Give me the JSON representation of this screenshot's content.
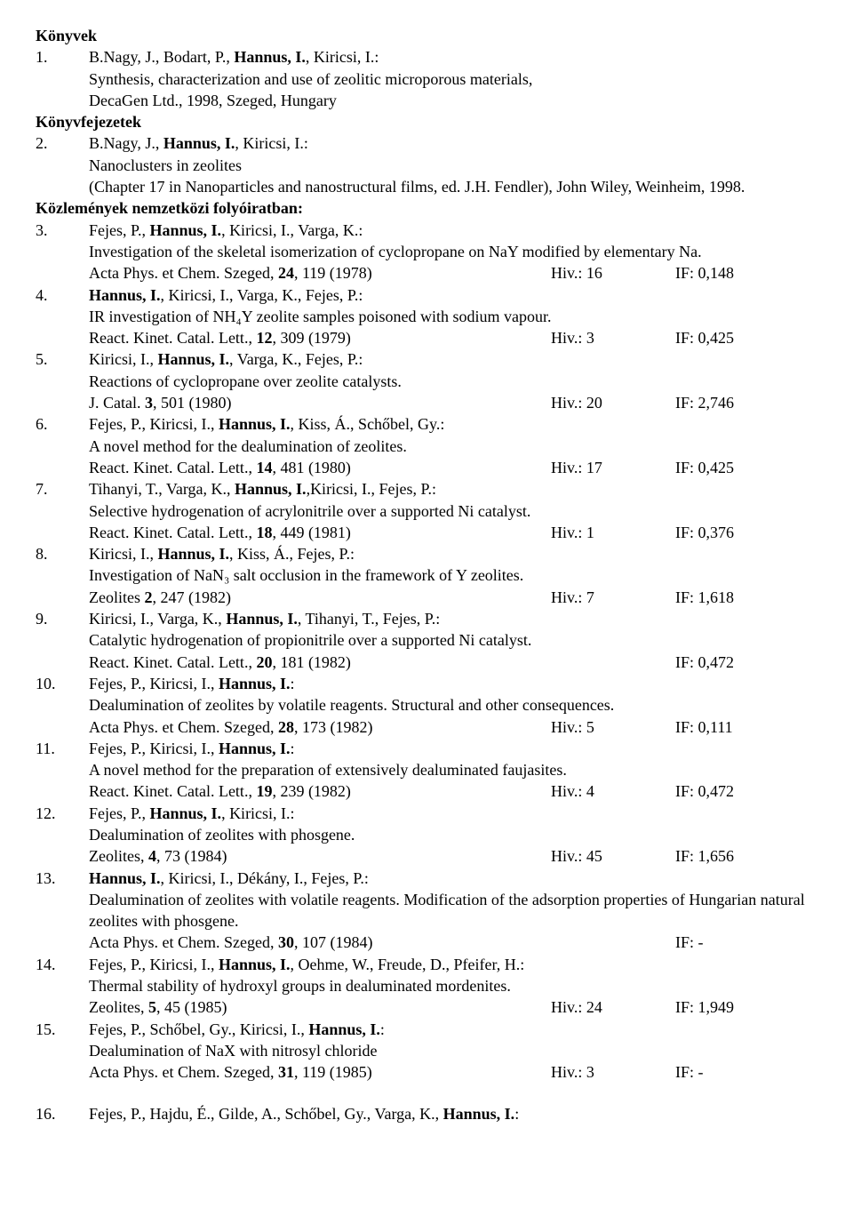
{
  "sections": {
    "books": "Könyvek",
    "chapters": "Könyvfejezetek",
    "journals": "Közlemények nemzetközi folyóiratban:"
  },
  "items": [
    {
      "num": "1.",
      "authors_html": "B.Nagy, J., Bodart, P., <b>Hannus, I.</b>, Kiricsi, I.:",
      "title": "Synthesis, characterization and use of zeolitic microporous materials,",
      "extra": "DecaGen Ltd., 1998, Szeged, Hungary"
    },
    {
      "num": "2.",
      "authors_html": "B.Nagy, J., <b>Hannus, I.</b>, Kiricsi, I.:",
      "title": "Nanoclusters in zeolites",
      "extra": "(Chapter 17 in Nanoparticles and nanostructural films, ed. J.H. Fendler), John Wiley, Weinheim, 1998."
    },
    {
      "num": "3.",
      "authors_html": "Fejes, P., <b>Hannus, I.</b>, Kiricsi, I., Varga, K.:",
      "title": "Investigation of the skeletal isomerization of cyclopropane on NaY modified by elementary Na.",
      "journal": "Acta Phys. et Chem. Szeged, <b>24</b>, 119 (1978)",
      "hiv": "Hiv.: 16",
      "if": "IF: 0,148"
    },
    {
      "num": "4.",
      "authors_html": "<b>Hannus, I.</b>, Kiricsi, I., Varga, K., Fejes, P.:",
      "title": "IR investigation of NH₄Y zeolite  samples  poisoned with  sodium vapour.",
      "journal": "React. Kinet. Catal. Lett., <b>12</b>, 309 (1979)",
      "hiv": "Hiv.: 3",
      "if": "IF: 0,425"
    },
    {
      "num": "5.",
      "authors_html": "Kiricsi, I., <b>Hannus, I.</b>, Varga, K., Fejes, P.:",
      "title": "Reactions of cyclopropane over zeolite catalysts.",
      "journal": "J. Catal. <b>3</b>, 501 (1980)",
      "hiv": "Hiv.: 20",
      "if": "IF: 2,746"
    },
    {
      "num": "6.",
      "authors_html": "Fejes, P., Kiricsi, I., <b>Hannus, I.</b>, Kiss, Á., Schőbel, Gy.:",
      "title": "A novel method for the dealumination of zeolites.",
      "journal": "React. Kinet. Catal. Lett., <b>14</b>, 481 (1980)",
      "hiv": "Hiv.: 17",
      "if": "IF: 0,425"
    },
    {
      "num": "7.",
      "authors_html": "Tihanyi, T., Varga, K., <b>Hannus, I.</b>,Kiricsi, I., Fejes, P.:",
      "title": "Selective hydrogenation of acrylonitrile over a supported  Ni catalyst.",
      "journal": "React. Kinet. Catal. Lett., <b>18</b>, 449 (1981)",
      "hiv": "Hiv.: 1",
      "if": "IF: 0,376"
    },
    {
      "num": "8.",
      "authors_html": "Kiricsi, I., <b>Hannus, I.</b>, Kiss, Á., Fejes, P.:",
      "title": "Investigation of NaN₃ salt occlusion in the framework of Y zeolites.",
      "journal": "Zeolites <b>2</b>, 247 (1982)",
      "hiv": "Hiv.: 7",
      "if": "IF: 1,618"
    },
    {
      "num": "9.",
      "authors_html": "Kiricsi, I., Varga, K., <b>Hannus, I.</b>, Tihanyi, T., Fejes, P.:",
      "title": "Catalytic hydrogenation of propionitrile over a supported Ni catalyst.",
      "journal": "React. Kinet. Catal. Lett., <b>20</b>, 181 (1982)",
      "hiv": "",
      "if": "IF: 0,472"
    },
    {
      "num": "10.",
      "authors_html": "Fejes, P., Kiricsi, I., <b>Hannus, I.</b>:",
      "title": "Dealumination  of  zeolites by volatile reagents. Structural and other consequences.",
      "journal": "Acta Phys. et Chem. Szeged, <b>28</b>, 173 (1982)",
      "hiv": "Hiv.: 5",
      "if": "IF: 0,111"
    },
    {
      "num": "11.",
      "authors_html": "Fejes, P., Kiricsi, I., <b>Hannus, I.</b>:",
      "title": "A novel method for the preparation of extensively dealuminated faujasites.",
      "journal": "React. Kinet. Catal. Lett., <b>19</b>, 239 (1982)",
      "hiv": "Hiv.: 4",
      "if": "IF: 0,472"
    },
    {
      "num": "12.",
      "authors_html": "Fejes, P., <b>Hannus, I.</b>, Kiricsi, I.:",
      "title": "Dealumination of  zeolites with phosgene.",
      "journal": "Zeolites, <b>4</b>, 73 (1984)",
      "hiv": "Hiv.: 45",
      "if": "IF: 1,656"
    },
    {
      "num": "13.",
      "authors_html": "<b>Hannus, I.</b>, Kiricsi, I., Dékány, I., Fejes, P.:",
      "title": "Dealumination of zeolites with volatile reagents. Modification of the adsorption properties of Hungarian natural zeolites with phosgene.",
      "journal": "Acta Phys. et Chem. Szeged, <b>30</b>, 107 (1984)",
      "hiv": "",
      "if": "IF: -"
    },
    {
      "num": "14.",
      "authors_html": "Fejes, P., Kiricsi, I., <b>Hannus, I.</b>, Oehme, W., Freude, D., Pfeifer, H.:",
      "title": "Thermal stability of hydroxyl groups in dealuminated mordenites.",
      "journal": "Zeolites, <b>5</b>, 45 (1985)",
      "hiv": "Hiv.: 24",
      "if": "IF: 1,949"
    },
    {
      "num": "15.",
      "authors_html": "Fejes, P., Schőbel, Gy., Kiricsi, I., <b>Hannus, I.</b>:",
      "title": "Dealumination of NaX with nitrosyl chloride",
      "journal": "Acta Phys. et Chem. Szeged, <b>31</b>, 119 (1985)",
      "hiv": "Hiv.: 3",
      "if": "IF: -"
    },
    {
      "num": "16.",
      "authors_html": "Fejes, P., Hajdu, É., Gilde, A., Schőbel, Gy., Varga, K., <b>Hannus, I.</b>:"
    }
  ]
}
